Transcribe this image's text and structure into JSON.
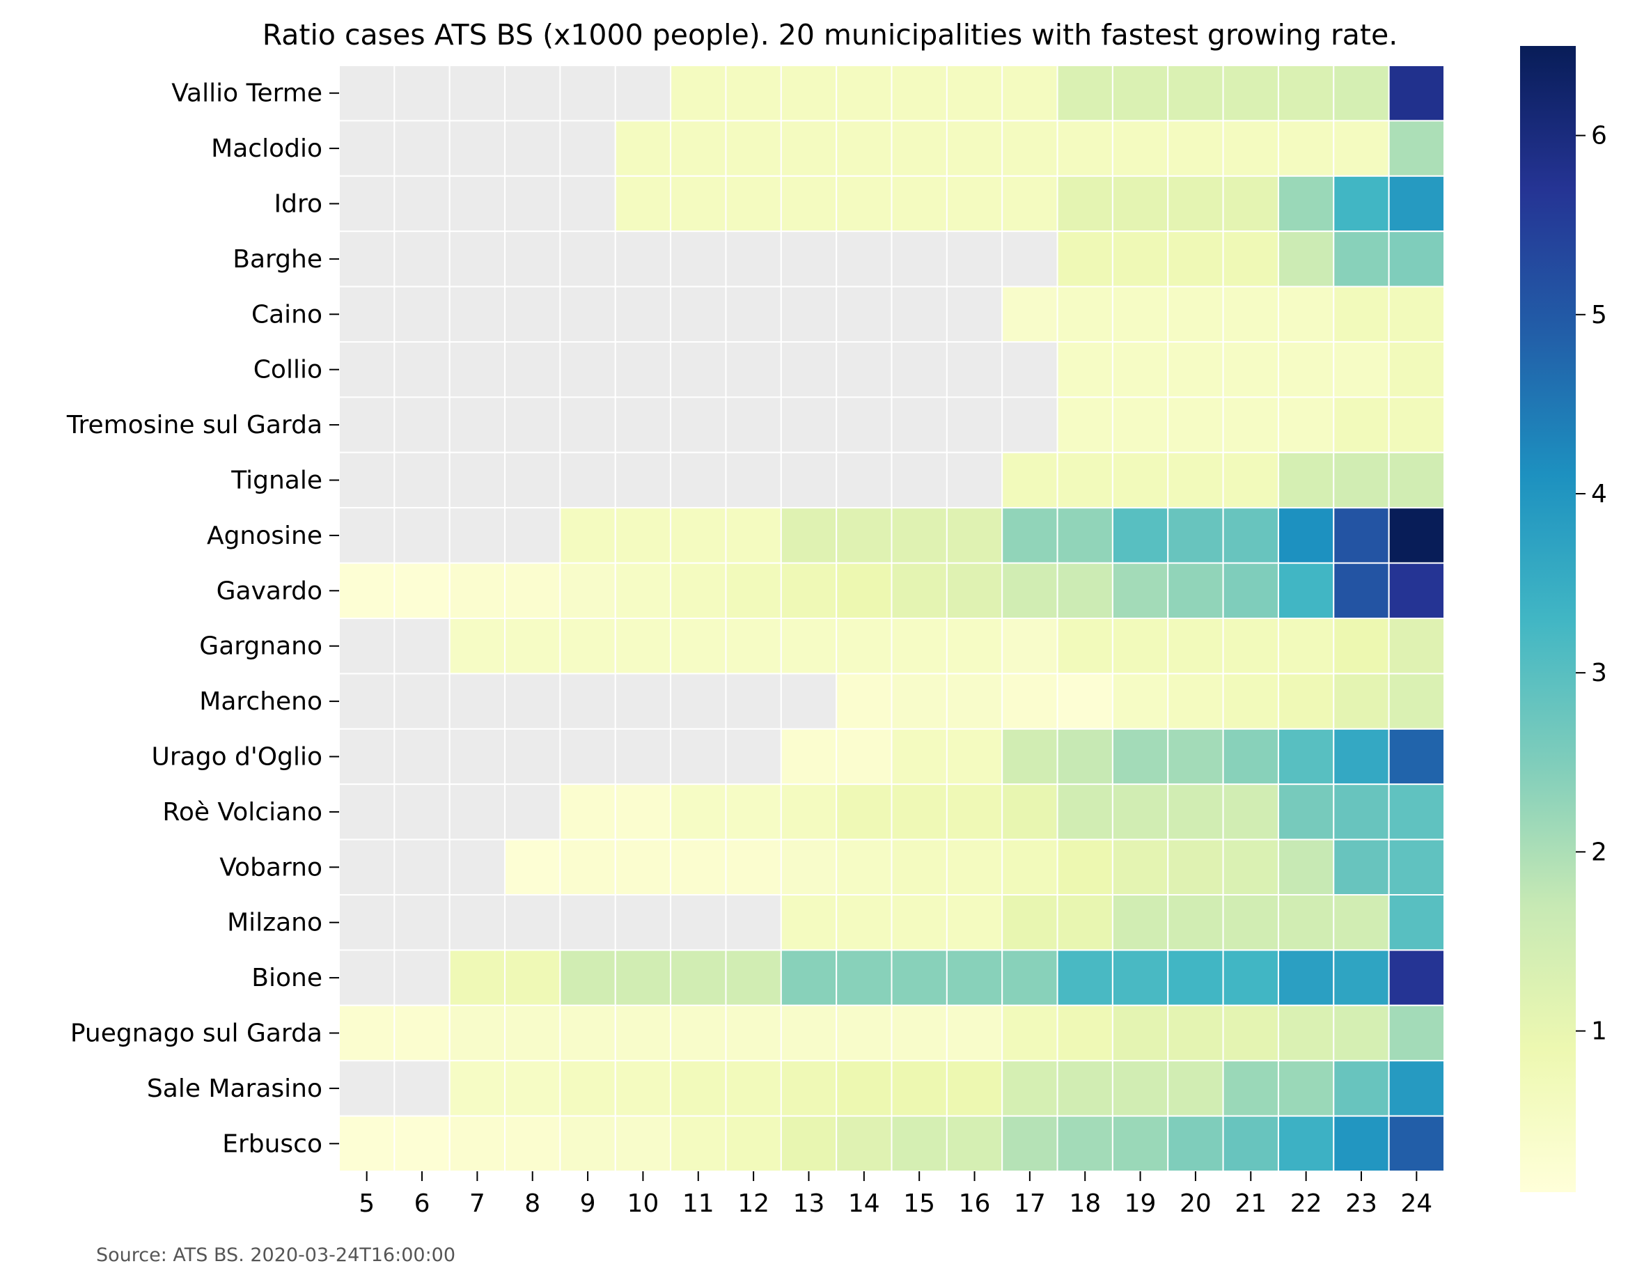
{
  "chart_data": {
    "type": "heatmap",
    "title": "Ratio cases ATS BS (x1000 people). 20 municipalities with fastest growing rate.",
    "xlabel": "",
    "ylabel": "",
    "x": [
      "5",
      "6",
      "7",
      "8",
      "9",
      "10",
      "11",
      "12",
      "13",
      "14",
      "15",
      "16",
      "17",
      "18",
      "19",
      "20",
      "21",
      "22",
      "23",
      "24"
    ],
    "y": [
      "Vallio Terme",
      "Maclodio",
      "Idro",
      "Barghe",
      "Caino",
      "Collio",
      "Tremosine sul Garda",
      "Tignale",
      "Agnosine",
      "Gavardo",
      "Gargnano",
      "Marcheno",
      "Urago d'Oglio",
      "Roè Volciano",
      "Vobarno",
      "Milzano",
      "Bione",
      "Puegnago sul Garda",
      "Sale Marasino",
      "Erbusco"
    ],
    "values": [
      [
        null,
        null,
        null,
        null,
        null,
        null,
        0.6,
        0.6,
        0.6,
        0.6,
        0.6,
        0.6,
        0.6,
        1.3,
        1.3,
        1.3,
        1.3,
        1.3,
        1.4,
        5.8
      ],
      [
        null,
        null,
        null,
        null,
        null,
        0.6,
        0.6,
        0.6,
        0.6,
        0.6,
        0.6,
        0.6,
        0.6,
        0.6,
        0.6,
        0.6,
        0.6,
        0.6,
        0.6,
        2.0
      ],
      [
        null,
        null,
        null,
        null,
        null,
        0.6,
        0.6,
        0.6,
        0.6,
        0.6,
        0.6,
        0.6,
        0.6,
        1.1,
        1.1,
        1.1,
        1.1,
        2.2,
        3.3,
        3.9
      ],
      [
        null,
        null,
        null,
        null,
        null,
        null,
        null,
        null,
        null,
        null,
        null,
        null,
        null,
        0.8,
        0.8,
        0.8,
        0.8,
        1.6,
        2.4,
        2.5
      ],
      [
        null,
        null,
        null,
        null,
        null,
        null,
        null,
        null,
        null,
        null,
        null,
        null,
        0.4,
        0.5,
        0.5,
        0.5,
        0.5,
        0.5,
        0.7,
        0.7
      ],
      [
        null,
        null,
        null,
        null,
        null,
        null,
        null,
        null,
        null,
        null,
        null,
        null,
        null,
        0.5,
        0.5,
        0.5,
        0.5,
        0.5,
        0.5,
        0.7
      ],
      [
        null,
        null,
        null,
        null,
        null,
        null,
        null,
        null,
        null,
        null,
        null,
        null,
        null,
        0.5,
        0.5,
        0.5,
        0.5,
        0.5,
        0.7,
        0.7
      ],
      [
        null,
        null,
        null,
        null,
        null,
        null,
        null,
        null,
        null,
        null,
        null,
        null,
        0.7,
        0.7,
        0.7,
        0.7,
        0.7,
        1.4,
        1.5,
        1.5
      ],
      [
        null,
        null,
        null,
        null,
        0.6,
        0.6,
        0.6,
        0.6,
        1.2,
        1.2,
        1.2,
        1.2,
        2.3,
        2.3,
        3.0,
        2.8,
        2.8,
        4.1,
        5.1,
        6.5
      ],
      [
        0.2,
        0.2,
        0.3,
        0.3,
        0.4,
        0.5,
        0.6,
        0.7,
        0.8,
        0.9,
        1.1,
        1.2,
        1.5,
        1.6,
        2.1,
        2.3,
        2.5,
        3.3,
        5.1,
        5.7
      ],
      [
        null,
        null,
        0.5,
        0.5,
        0.5,
        0.5,
        0.5,
        0.5,
        0.5,
        0.5,
        0.5,
        0.5,
        0.4,
        0.7,
        0.7,
        0.7,
        0.7,
        0.7,
        0.9,
        1.2
      ],
      [
        null,
        null,
        null,
        null,
        null,
        null,
        null,
        null,
        null,
        0.3,
        0.4,
        0.4,
        0.3,
        0.2,
        0.5,
        0.6,
        0.7,
        0.8,
        1.1,
        1.3
      ],
      [
        null,
        null,
        null,
        null,
        null,
        null,
        null,
        null,
        0.3,
        0.3,
        0.6,
        0.6,
        1.5,
        1.7,
        2.1,
        2.1,
        2.4,
        3.0,
        3.6,
        4.8
      ],
      [
        null,
        null,
        null,
        null,
        0.3,
        0.3,
        0.5,
        0.5,
        0.6,
        0.8,
        0.8,
        0.8,
        1.0,
        1.5,
        1.5,
        1.5,
        1.5,
        2.6,
        2.8,
        2.9
      ],
      [
        null,
        null,
        null,
        0.2,
        0.3,
        0.3,
        0.3,
        0.3,
        0.4,
        0.5,
        0.6,
        0.6,
        0.7,
        0.9,
        1.1,
        1.2,
        1.3,
        1.7,
        2.8,
        2.9
      ],
      [
        null,
        null,
        null,
        null,
        null,
        null,
        null,
        null,
        0.6,
        0.6,
        0.6,
        0.6,
        1.0,
        1.0,
        1.5,
        1.5,
        1.5,
        1.5,
        1.5,
        3.0
      ],
      [
        null,
        null,
        0.8,
        0.8,
        1.5,
        1.5,
        1.5,
        1.5,
        2.4,
        2.4,
        2.4,
        2.4,
        2.4,
        3.2,
        3.2,
        3.3,
        3.3,
        3.8,
        3.7,
        5.7
      ],
      [
        0.3,
        0.3,
        0.4,
        0.4,
        0.4,
        0.4,
        0.4,
        0.4,
        0.4,
        0.4,
        0.4,
        0.4,
        0.7,
        0.8,
        1.1,
        1.1,
        1.1,
        1.3,
        1.4,
        2.1
      ],
      [
        null,
        null,
        0.5,
        0.5,
        0.6,
        0.6,
        0.7,
        0.7,
        0.8,
        0.9,
        0.9,
        0.9,
        1.4,
        1.5,
        1.5,
        1.5,
        2.2,
        2.2,
        2.8,
        3.9
      ],
      [
        0.2,
        0.2,
        0.3,
        0.3,
        0.4,
        0.4,
        0.6,
        0.7,
        1.0,
        1.2,
        1.4,
        1.4,
        1.9,
        2.1,
        2.2,
        2.5,
        2.8,
        3.4,
        4.0,
        4.9
      ]
    ],
    "colorbar": {
      "range": [
        0.1,
        6.5
      ],
      "ticks": [
        "1",
        "2",
        "3",
        "4",
        "5",
        "6"
      ],
      "tick_values": [
        1,
        2,
        3,
        4,
        5,
        6
      ],
      "colormap": "YlGnBu"
    },
    "missing_color": "#ebebeb",
    "grid": false,
    "legend": "colorbar-right"
  },
  "source_note": "Source: ATS BS. 2020-03-24T16:00:00"
}
